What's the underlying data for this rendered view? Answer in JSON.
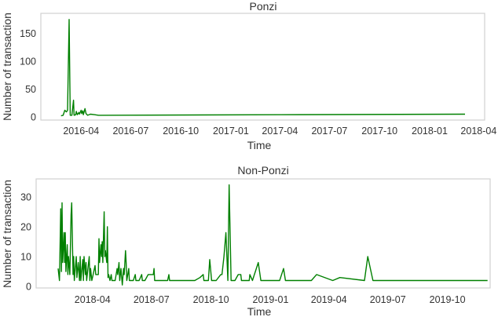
{
  "chart_data": [
    {
      "type": "line",
      "title": "Ponzi",
      "xlabel": "Time",
      "ylabel": "Number of transaction",
      "xlim": [
        "2016-01-18",
        "2018-04-12"
      ],
      "ylim": [
        -5.6,
        186
      ],
      "xticks": [
        "2016-04",
        "2016-07",
        "2016-10",
        "2017-01",
        "2017-04",
        "2017-07",
        "2017-10",
        "2018-01",
        "2018-04"
      ],
      "yticks": [
        0,
        50,
        100,
        150
      ],
      "grid": false,
      "color": "#008000",
      "x": [
        "2016-02-24",
        "2016-02-28",
        "2016-03-02",
        "2016-03-05",
        "2016-03-07",
        "2016-03-10",
        "2016-03-12",
        "2016-03-15",
        "2016-03-18",
        "2016-03-19",
        "2016-03-22",
        "2016-03-23",
        "2016-03-25",
        "2016-03-28",
        "2016-03-29",
        "2016-04-01",
        "2016-04-02",
        "2016-04-04",
        "2016-04-05",
        "2016-04-08",
        "2016-04-10",
        "2016-04-13",
        "2016-04-18",
        "2016-04-26",
        "2016-05-03",
        "2017-04-01",
        "2018-03-07"
      ],
      "y": [
        2,
        3,
        12,
        9,
        12,
        175,
        3,
        3,
        30,
        3,
        4,
        10,
        4,
        8,
        5,
        12,
        6,
        11,
        4,
        15,
        6,
        3,
        5,
        4,
        3,
        4,
        5
      ]
    },
    {
      "type": "line",
      "title": "Non-Ponzi",
      "xlabel": "Time",
      "ylabel": "Number of transaction",
      "xlim": [
        "2018-01-04",
        "2019-12-06"
      ],
      "ylim": [
        -0.5,
        36
      ],
      "xticks": [
        "2018-04",
        "2018-07",
        "2018-10",
        "2019-01",
        "2019-04",
        "2019-07",
        "2019-10"
      ],
      "yticks": [
        0,
        10,
        20,
        30
      ],
      "grid": false,
      "color": "#008000",
      "x": [
        "2018-02-07",
        "2018-02-09",
        "2018-02-11",
        "2018-02-12",
        "2018-02-13",
        "2018-02-14",
        "2018-02-16",
        "2018-02-17",
        "2018-02-18",
        "2018-02-19",
        "2018-02-21",
        "2018-02-22",
        "2018-02-23",
        "2018-02-25",
        "2018-02-27",
        "2018-02-28",
        "2018-03-02",
        "2018-03-03",
        "2018-03-04",
        "2018-03-07",
        "2018-03-08",
        "2018-03-10",
        "2018-03-12",
        "2018-03-13",
        "2018-03-14",
        "2018-03-17",
        "2018-03-18",
        "2018-03-19",
        "2018-03-21",
        "2018-03-22",
        "2018-03-23",
        "2018-03-27",
        "2018-03-28",
        "2018-03-29",
        "2018-03-31",
        "2018-04-02",
        "2018-04-05",
        "2018-04-06",
        "2018-04-10",
        "2018-04-11",
        "2018-04-12",
        "2018-04-14",
        "2018-04-15",
        "2018-04-16",
        "2018-04-17",
        "2018-04-19",
        "2018-04-20",
        "2018-04-21",
        "2018-04-23",
        "2018-04-24",
        "2018-04-25",
        "2018-04-26",
        "2018-04-28",
        "2018-04-30",
        "2018-05-01",
        "2018-05-06",
        "2018-05-09",
        "2018-05-10",
        "2018-05-12",
        "2018-05-13",
        "2018-05-15",
        "2018-05-17",
        "2018-05-19",
        "2018-05-20",
        "2018-05-22",
        "2018-05-23",
        "2018-05-24",
        "2018-05-27",
        "2018-05-28",
        "2018-06-03",
        "2018-06-06",
        "2018-06-07",
        "2018-06-12",
        "2018-06-16",
        "2018-06-17",
        "2018-06-21",
        "2018-06-26",
        "2018-07-04",
        "2018-07-05",
        "2018-07-06",
        "2018-07-26",
        "2018-07-28",
        "2018-07-29",
        "2018-09-06",
        "2018-09-14",
        "2018-09-19",
        "2018-09-20",
        "2018-09-27",
        "2018-09-29",
        "2018-10-02",
        "2018-10-09",
        "2018-10-16",
        "2018-10-18",
        "2018-10-21",
        "2018-10-24",
        "2018-10-27",
        "2018-10-29",
        "2018-11-01",
        "2018-11-07",
        "2018-11-12",
        "2018-11-16",
        "2018-11-17",
        "2018-11-29",
        "2018-11-30",
        "2018-12-04",
        "2018-12-13",
        "2018-12-17",
        "2019-01-15",
        "2019-01-21",
        "2019-01-24",
        "2019-03-05",
        "2019-03-13",
        "2019-04-07",
        "2019-04-18",
        "2019-05-26",
        "2019-05-31",
        "2019-06-08",
        "2019-12-02"
      ],
      "y": [
        6,
        2,
        26,
        5,
        28,
        8,
        18,
        8,
        18,
        5,
        14,
        4,
        10,
        4,
        24,
        28,
        4,
        10,
        2,
        10,
        3,
        8,
        2,
        10,
        2,
        9,
        2,
        10,
        4,
        8,
        2,
        10,
        2,
        6,
        2,
        4,
        7,
        4,
        4,
        16,
        8,
        14,
        10,
        15,
        8,
        25,
        10,
        12,
        8,
        20,
        3,
        4,
        2,
        4,
        2,
        2,
        6,
        4,
        8,
        2,
        6,
        0.5,
        6,
        4,
        12,
        8,
        2,
        6,
        2,
        2,
        4,
        2,
        2,
        4,
        2,
        2,
        4,
        4,
        6,
        2,
        2,
        4,
        2,
        2,
        3,
        4,
        2,
        2,
        9,
        2,
        2,
        4,
        4,
        10,
        18,
        2,
        34,
        2,
        2,
        4,
        4,
        2,
        2,
        4,
        2,
        8,
        2,
        2,
        6,
        2,
        2,
        4,
        2,
        3,
        2,
        10,
        2,
        2
      ]
    }
  ]
}
